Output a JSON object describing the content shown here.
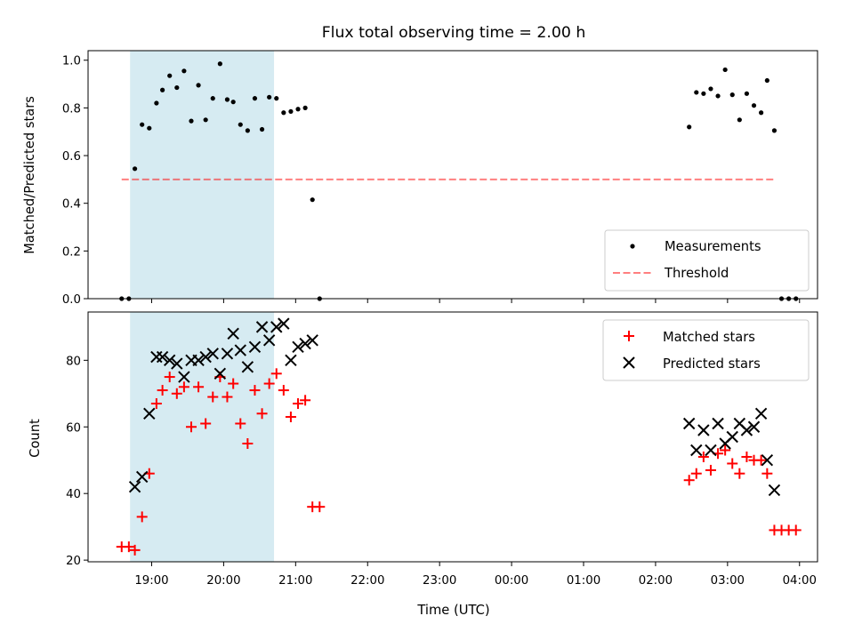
{
  "colors": {
    "shade": "#add8e6",
    "threshold": "#ff0000",
    "matched": "#ff0000",
    "predicted": "#000000",
    "measurement": "#000000"
  },
  "chart_data": {
    "title": "Flux total observing time = 2.00 h",
    "xlabel": "Time (UTC)",
    "x_unit": "hours",
    "x_ticks": [
      "19:00",
      "20:00",
      "21:00",
      "22:00",
      "23:00",
      "00:00",
      "01:00",
      "02:00",
      "03:00",
      "04:00"
    ],
    "xlim": [
      "18:07",
      "04:15"
    ],
    "observing_window": [
      "18:42",
      "20:42"
    ],
    "panels": [
      {
        "type": "scatter",
        "ylabel": "Matched/Predicted stars",
        "ylim": [
          0,
          1.04
        ],
        "y_ticks": [
          "0.0",
          "0.2",
          "0.4",
          "0.6",
          "0.8",
          "1.0"
        ],
        "legend_position": "bottom-right",
        "threshold": {
          "name": "Threshold",
          "value": 0.5,
          "x_range": [
            "18:35",
            "03:40"
          ]
        },
        "series": [
          {
            "name": "Measurements",
            "marker": "dot",
            "points": [
              [
                "18:35",
                0.0
              ],
              [
                "18:41",
                0.0
              ],
              [
                "18:46",
                0.545
              ],
              [
                "18:52",
                0.73
              ],
              [
                "18:58",
                0.715
              ],
              [
                "19:04",
                0.82
              ],
              [
                "19:09",
                0.875
              ],
              [
                "19:15",
                0.935
              ],
              [
                "19:21",
                0.885
              ],
              [
                "19:27",
                0.955
              ],
              [
                "19:33",
                0.745
              ],
              [
                "19:39",
                0.895
              ],
              [
                "19:45",
                0.75
              ],
              [
                "19:51",
                0.84
              ],
              [
                "19:57",
                0.985
              ],
              [
                "20:03",
                0.835
              ],
              [
                "20:08",
                0.825
              ],
              [
                "20:14",
                0.73
              ],
              [
                "20:20",
                0.705
              ],
              [
                "20:26",
                0.84
              ],
              [
                "20:32",
                0.71
              ],
              [
                "20:38",
                0.845
              ],
              [
                "20:44",
                0.84
              ],
              [
                "20:50",
                0.78
              ],
              [
                "20:56",
                0.785
              ],
              [
                "21:02",
                0.795
              ],
              [
                "21:08",
                0.8
              ],
              [
                "21:14",
                0.415
              ],
              [
                "21:20",
                0.0
              ],
              [
                "02:28",
                0.72
              ],
              [
                "02:34",
                0.865
              ],
              [
                "02:40",
                0.86
              ],
              [
                "02:46",
                0.88
              ],
              [
                "02:52",
                0.85
              ],
              [
                "02:58",
                0.96
              ],
              [
                "03:04",
                0.855
              ],
              [
                "03:10",
                0.75
              ],
              [
                "03:16",
                0.86
              ],
              [
                "03:22",
                0.81
              ],
              [
                "03:28",
                0.78
              ],
              [
                "03:33",
                0.915
              ],
              [
                "03:39",
                0.705
              ],
              [
                "03:45",
                0.0
              ],
              [
                "03:51",
                0.0
              ],
              [
                "03:57",
                0.0
              ]
            ]
          }
        ]
      },
      {
        "type": "scatter",
        "ylabel": "Count",
        "ylim": [
          19.5,
          94.5
        ],
        "y_ticks": [
          "20",
          "40",
          "60",
          "80"
        ],
        "legend_position": "top-right",
        "series": [
          {
            "name": "Matched stars",
            "marker": "plus",
            "points": [
              [
                "18:35",
                24
              ],
              [
                "18:41",
                24
              ],
              [
                "18:46",
                23
              ],
              [
                "18:52",
                33
              ],
              [
                "18:58",
                46
              ],
              [
                "19:04",
                67
              ],
              [
                "19:09",
                71
              ],
              [
                "19:15",
                75
              ],
              [
                "19:21",
                70
              ],
              [
                "19:27",
                72
              ],
              [
                "19:33",
                60
              ],
              [
                "19:39",
                72
              ],
              [
                "19:45",
                61
              ],
              [
                "19:51",
                69
              ],
              [
                "19:57",
                75
              ],
              [
                "20:03",
                69
              ],
              [
                "20:08",
                73
              ],
              [
                "20:14",
                61
              ],
              [
                "20:20",
                55
              ],
              [
                "20:26",
                71
              ],
              [
                "20:32",
                64
              ],
              [
                "20:38",
                73
              ],
              [
                "20:44",
                76
              ],
              [
                "20:50",
                71
              ],
              [
                "20:56",
                63
              ],
              [
                "21:02",
                67
              ],
              [
                "21:08",
                68
              ],
              [
                "21:14",
                36
              ],
              [
                "21:20",
                36
              ],
              [
                "02:28",
                44
              ],
              [
                "02:34",
                46
              ],
              [
                "02:40",
                51
              ],
              [
                "02:46",
                47
              ],
              [
                "02:52",
                52
              ],
              [
                "02:58",
                53
              ],
              [
                "03:04",
                49
              ],
              [
                "03:10",
                46
              ],
              [
                "03:16",
                51
              ],
              [
                "03:22",
                50
              ],
              [
                "03:28",
                50
              ],
              [
                "03:33",
                46
              ],
              [
                "03:39",
                29
              ],
              [
                "03:45",
                29
              ],
              [
                "03:51",
                29
              ],
              [
                "03:57",
                29
              ]
            ]
          },
          {
            "name": "Predicted stars",
            "marker": "x",
            "points": [
              [
                "18:46",
                42
              ],
              [
                "18:52",
                45
              ],
              [
                "18:58",
                64
              ],
              [
                "19:04",
                81
              ],
              [
                "19:09",
                81
              ],
              [
                "19:15",
                80
              ],
              [
                "19:21",
                79
              ],
              [
                "19:27",
                75
              ],
              [
                "19:33",
                80
              ],
              [
                "19:39",
                80
              ],
              [
                "19:45",
                81
              ],
              [
                "19:51",
                82
              ],
              [
                "19:57",
                76
              ],
              [
                "20:03",
                82
              ],
              [
                "20:08",
                88
              ],
              [
                "20:14",
                83
              ],
              [
                "20:20",
                78
              ],
              [
                "20:26",
                84
              ],
              [
                "20:32",
                90
              ],
              [
                "20:38",
                86
              ],
              [
                "20:44",
                90
              ],
              [
                "20:50",
                91
              ],
              [
                "20:56",
                80
              ],
              [
                "21:02",
                84
              ],
              [
                "21:08",
                85
              ],
              [
                "21:14",
                86
              ],
              [
                "02:28",
                61
              ],
              [
                "02:34",
                53
              ],
              [
                "02:40",
                59
              ],
              [
                "02:46",
                53
              ],
              [
                "02:52",
                61
              ],
              [
                "02:58",
                55
              ],
              [
                "03:04",
                57
              ],
              [
                "03:10",
                61
              ],
              [
                "03:16",
                59
              ],
              [
                "03:22",
                60
              ],
              [
                "03:28",
                64
              ],
              [
                "03:33",
                50
              ],
              [
                "03:39",
                41
              ]
            ]
          }
        ]
      }
    ]
  }
}
